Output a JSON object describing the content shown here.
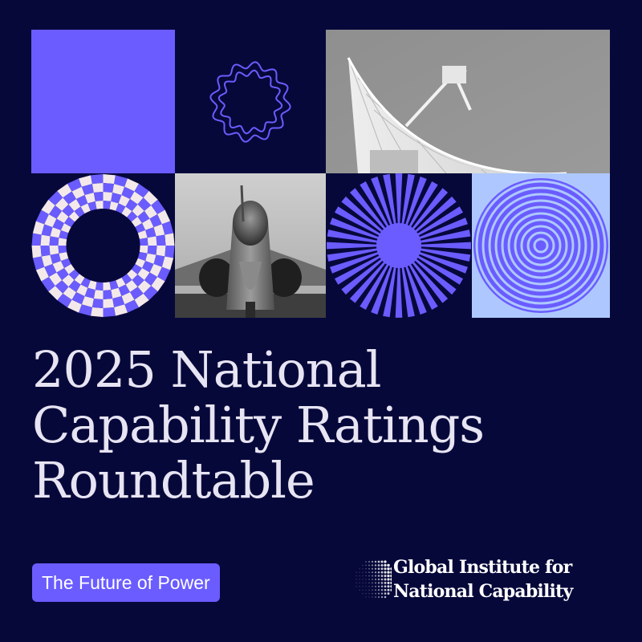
{
  "headline": {
    "line1": "2025 National",
    "line2": "Capability Ratings",
    "line3": "Roundtable"
  },
  "tag": {
    "label": "The Future of Power"
  },
  "organization": {
    "line1": "Global Institute for",
    "line2": "National Capability",
    "logo_icon": "dotted-globe-icon"
  },
  "colors": {
    "background": "#07083a",
    "accent_purple": "#6a5cff",
    "light_blue": "#aec8ff",
    "cream": "#f4e9ea",
    "headline_text": "#e7e4f3"
  },
  "tiles": [
    {
      "name": "purple-square",
      "kind": "solid block"
    },
    {
      "name": "wavy-rings-graphic",
      "kind": "two wavy outline rings"
    },
    {
      "name": "radio-telescope-dish-photo",
      "kind": "grayscale photo"
    },
    {
      "name": "checkered-ring-graphic",
      "kind": "checkered ring"
    },
    {
      "name": "fighter-jet-photo",
      "kind": "grayscale photo"
    },
    {
      "name": "starburst-graphic",
      "kind": "radiating rays circle"
    },
    {
      "name": "concentric-circles-graphic",
      "kind": "concentric rings"
    }
  ]
}
